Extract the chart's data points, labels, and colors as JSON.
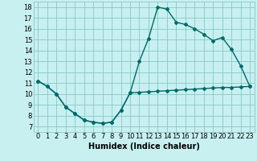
{
  "xlabel": "Humidex (Indice chaleur)",
  "bg_color": "#c8f0f0",
  "grid_color": "#88c8c8",
  "line_color": "#006868",
  "xlim": [
    -0.5,
    23.5
  ],
  "ylim": [
    6.5,
    18.5
  ],
  "xticks": [
    0,
    1,
    2,
    3,
    4,
    5,
    6,
    7,
    8,
    9,
    10,
    11,
    12,
    13,
    14,
    15,
    16,
    17,
    18,
    19,
    20,
    21,
    22,
    23
  ],
  "yticks": [
    7,
    8,
    9,
    10,
    11,
    12,
    13,
    14,
    15,
    16,
    17,
    18
  ],
  "line1_x": [
    0,
    1,
    2,
    3,
    4,
    5,
    6,
    7,
    8,
    9,
    10,
    11,
    12,
    13,
    14,
    15,
    16,
    17,
    18,
    19,
    20,
    21,
    22,
    23
  ],
  "line1_y": [
    11.2,
    10.7,
    10.0,
    8.8,
    8.2,
    7.6,
    7.4,
    7.3,
    7.4,
    8.5,
    10.1,
    13.0,
    15.1,
    18.0,
    17.8,
    16.6,
    16.4,
    16.0,
    15.5,
    14.9,
    15.2,
    14.1,
    12.6,
    10.7
  ],
  "line2_x": [
    0,
    1,
    2,
    3,
    4,
    5,
    6,
    7,
    8,
    9,
    10,
    11,
    12,
    13,
    14,
    15,
    16,
    17,
    18,
    19,
    20,
    21,
    22,
    23
  ],
  "line2_y": [
    11.2,
    10.7,
    10.0,
    8.8,
    8.2,
    7.6,
    7.4,
    7.3,
    7.4,
    8.5,
    10.1,
    10.15,
    10.2,
    10.25,
    10.3,
    10.35,
    10.4,
    10.45,
    10.5,
    10.55,
    10.6,
    10.6,
    10.65,
    10.7
  ],
  "xlabel_fontsize": 7,
  "tick_fontsize": 6,
  "lw": 1.0,
  "ms": 2.0
}
